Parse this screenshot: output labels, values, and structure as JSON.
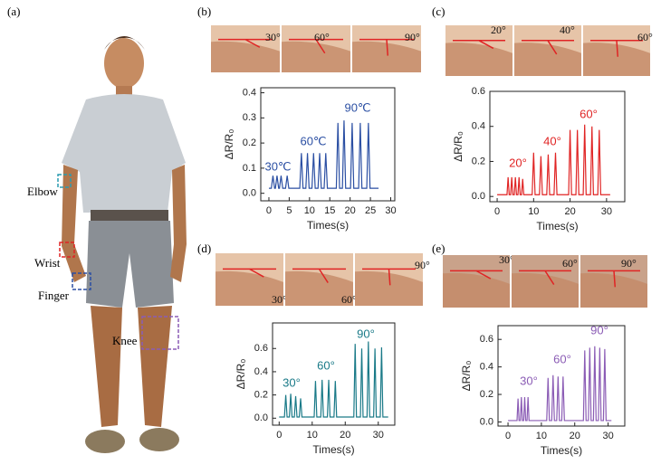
{
  "panel_labels": [
    "(a)",
    "(b)",
    "(c)",
    "(d)",
    "(e)"
  ],
  "body_labels": [
    "Elbow",
    "Wrist",
    "Finger",
    "Knee"
  ],
  "photo_labels": [
    [
      "30°",
      "60°",
      "90°"
    ],
    [
      "20°",
      "40°",
      "60°"
    ],
    [
      "30°",
      "60°",
      "90°"
    ],
    [
      "30°",
      "60°",
      "90°"
    ]
  ],
  "chart_data": [
    {
      "type": "line",
      "color": "#2b4fa3",
      "xlabel": "Times(s)",
      "ylabel": "ΔR/R₀",
      "annotations": [
        "30℃",
        "60℃",
        "90℃"
      ],
      "xlim": [
        -2,
        31
      ],
      "xticks": [
        0,
        5,
        10,
        15,
        20,
        25,
        30
      ],
      "ylim": [
        -0.03,
        0.42
      ],
      "yticks": [
        {
          "value": 0,
          "label": "0.0"
        },
        0.1,
        0.2,
        0.3,
        0.4
      ],
      "x": [
        0,
        0.6,
        1,
        1.4,
        1.6,
        2,
        2.4,
        2.6,
        3,
        3.4,
        4.1,
        4.5,
        4.9,
        7.6,
        8,
        8.4,
        9.1,
        9.5,
        9.9,
        10.6,
        11,
        11.4,
        12.1,
        12.5,
        12.9,
        13.6,
        14,
        14.4,
        16.6,
        17,
        17.4,
        18.1,
        18.5,
        18.9,
        20.1,
        20.5,
        20.9,
        22.1,
        22.5,
        22.9,
        24.1,
        24.5,
        24.9,
        27
      ],
      "values": [
        0.02,
        0.02,
        0.07,
        0.02,
        0.02,
        0.07,
        0.02,
        0.02,
        0.07,
        0.02,
        0.02,
        0.07,
        0.02,
        0.02,
        0.16,
        0.02,
        0.02,
        0.16,
        0.02,
        0.02,
        0.16,
        0.02,
        0.02,
        0.16,
        0.02,
        0.02,
        0.16,
        0.02,
        0.02,
        0.28,
        0.02,
        0.02,
        0.29,
        0.02,
        0.02,
        0.28,
        0.02,
        0.02,
        0.28,
        0.02,
        0.02,
        0.28,
        0.02,
        0.02
      ]
    },
    {
      "type": "line",
      "color": "#e02424",
      "xlabel": "Times(s)",
      "ylabel": "ΔR/R₀",
      "annotations": [
        "20°",
        "40°",
        "60°"
      ],
      "xlim": [
        -2,
        35
      ],
      "xticks": [
        0,
        10,
        20,
        30
      ],
      "ylim": [
        -0.03,
        0.6
      ],
      "yticks": [
        {
          "value": 0,
          "label": "0.0"
        },
        0.2,
        0.4,
        0.6
      ],
      "x": [
        0,
        2.7,
        3,
        3.3,
        3.7,
        4,
        4.3,
        4.7,
        5,
        5.3,
        5.7,
        6,
        6.3,
        6.7,
        7,
        7.3,
        9.6,
        10,
        10.4,
        11.6,
        12,
        12.4,
        13.6,
        14,
        14.4,
        15.6,
        16,
        16.4,
        19.6,
        20,
        20.4,
        21.6,
        22,
        22.4,
        23.6,
        24,
        24.4,
        25.6,
        26,
        26.4,
        27.6,
        28,
        28.4,
        31
      ],
      "values": [
        0.01,
        0.01,
        0.11,
        0.01,
        0.01,
        0.11,
        0.01,
        0.01,
        0.11,
        0.01,
        0.01,
        0.11,
        0.01,
        0.01,
        0.1,
        0.01,
        0.01,
        0.25,
        0.01,
        0.01,
        0.23,
        0.01,
        0.01,
        0.24,
        0.01,
        0.01,
        0.25,
        0.01,
        0.01,
        0.38,
        0.01,
        0.01,
        0.38,
        0.01,
        0.01,
        0.41,
        0.01,
        0.01,
        0.4,
        0.01,
        0.01,
        0.38,
        0.01,
        0.01
      ]
    },
    {
      "type": "line",
      "color": "#1a7a88",
      "xlabel": "Times(s)",
      "ylabel": "ΔR/R₀",
      "annotations": [
        "30°",
        "60°",
        "90°"
      ],
      "xlim": [
        -2,
        35
      ],
      "xticks": [
        0,
        10,
        20,
        30
      ],
      "ylim": [
        -0.06,
        0.82
      ],
      "yticks": [
        {
          "value": 0,
          "label": "0.0"
        },
        0.2,
        0.4,
        0.6
      ],
      "x": [
        0,
        1.6,
        2,
        2.4,
        3.1,
        3.5,
        3.9,
        4.6,
        5,
        5.4,
        6.1,
        6.5,
        6.9,
        10.6,
        11,
        11.4,
        12.6,
        13,
        13.4,
        14.6,
        15,
        15.4,
        16.6,
        17,
        17.4,
        22.6,
        23,
        23.4,
        24.6,
        25,
        25.4,
        26.6,
        27,
        27.4,
        28.6,
        29,
        29.4,
        30.6,
        31,
        31.4,
        33
      ],
      "values": [
        0.01,
        0.01,
        0.2,
        0.01,
        0.01,
        0.21,
        0.01,
        0.01,
        0.19,
        0.01,
        0.01,
        0.17,
        0.01,
        0.01,
        0.32,
        0.01,
        0.01,
        0.33,
        0.01,
        0.01,
        0.33,
        0.01,
        0.01,
        0.32,
        0.01,
        0.01,
        0.64,
        0.01,
        0.01,
        0.6,
        0.01,
        0.01,
        0.66,
        0.01,
        0.01,
        0.6,
        0.01,
        0.01,
        0.61,
        0.01,
        0.01
      ]
    },
    {
      "type": "line",
      "color": "#8b5cb5",
      "xlabel": "Times(s)",
      "ylabel": "ΔR/R₀",
      "annotations": [
        "30°",
        "60°",
        "90°"
      ],
      "xlim": [
        -3,
        35
      ],
      "xticks": [
        0,
        10,
        20,
        30
      ],
      "ylim": [
        -0.03,
        0.7
      ],
      "yticks": [
        {
          "value": 0,
          "label": "0.0"
        },
        0.2,
        0.4,
        0.6
      ],
      "x": [
        0,
        2.7,
        3,
        3.3,
        3.7,
        4,
        4.3,
        4.7,
        5,
        5.3,
        5.7,
        6,
        6.3,
        11.6,
        12,
        12.4,
        13.1,
        13.5,
        13.9,
        14.6,
        15,
        15.4,
        16.1,
        16.5,
        16.9,
        22.6,
        23,
        23.4,
        24.1,
        24.5,
        24.9,
        25.6,
        26,
        26.4,
        27.1,
        27.5,
        27.9,
        28.6,
        29,
        29.4,
        31
      ],
      "values": [
        0.01,
        0.01,
        0.17,
        0.01,
        0.01,
        0.18,
        0.01,
        0.01,
        0.18,
        0.01,
        0.01,
        0.18,
        0.01,
        0.01,
        0.32,
        0.01,
        0.01,
        0.34,
        0.01,
        0.01,
        0.33,
        0.01,
        0.01,
        0.33,
        0.01,
        0.01,
        0.52,
        0.01,
        0.01,
        0.54,
        0.01,
        0.01,
        0.55,
        0.01,
        0.01,
        0.54,
        0.01,
        0.01,
        0.53,
        0.01,
        0.01
      ]
    }
  ]
}
